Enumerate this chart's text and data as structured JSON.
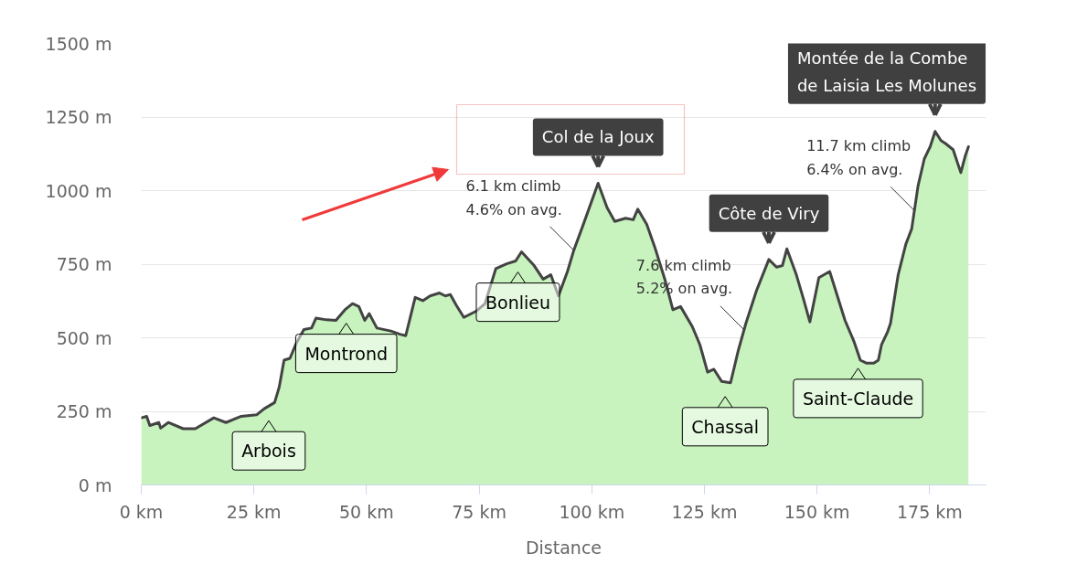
{
  "chart_data": {
    "type": "area",
    "xlabel": "Distance",
    "x": [
      0,
      1.2,
      1.9,
      3.9,
      4.3,
      6.0,
      9.3,
      12.0,
      16.1,
      18.8,
      22.2,
      25.6,
      27.3,
      29.6,
      30.6,
      31.7,
      33.0,
      34.4,
      36.1,
      37.8,
      38.8,
      41.1,
      43.2,
      45.2,
      46.9,
      48.3,
      49.6,
      50.6,
      52.3,
      55.4,
      57.4,
      58.7,
      59.7,
      60.8,
      62.5,
      64.1,
      66.2,
      67.5,
      68.6,
      69.9,
      71.6,
      74.3,
      76.3,
      78.7,
      81.1,
      83.1,
      84.4,
      87.2,
      89.2,
      90.9,
      92.6,
      94.6,
      96.0,
      98.0,
      101.4,
      103.4,
      105.1,
      107.5,
      109.2,
      110.2,
      112.2,
      114.0,
      116.3,
      118.0,
      119.7,
      122.3,
      124.0,
      125.7,
      127.1,
      128.8,
      130.8,
      132.5,
      134.2,
      136.6,
      139.3,
      141.0,
      142.3,
      143.3,
      145.4,
      147.0,
      148.4,
      150.4,
      152.8,
      154.5,
      156.2,
      158.2,
      159.6,
      160.9,
      162.6,
      163.6,
      164.3,
      165.6,
      166.3,
      168.0,
      169.7,
      171.0,
      172.4,
      173.8,
      175.1,
      176.2,
      177.5,
      178.5,
      180.2,
      181.9,
      182.9,
      183.6
    ],
    "series": [
      {
        "color": "#c8f3be",
        "values": [
          228,
          233,
          202,
          212,
          193,
          212,
          191,
          191,
          228,
          212,
          233,
          238,
          259,
          280,
          331,
          424,
          430,
          481,
          528,
          533,
          567,
          561,
          559,
          595,
          616,
          606,
          559,
          582,
          533,
          523,
          512,
          507,
          569,
          637,
          626,
          642,
          652,
          642,
          647,
          611,
          569,
          590,
          616,
          735,
          751,
          761,
          792,
          745,
          699,
          714,
          642,
          725,
          797,
          880,
          1025,
          942,
          895,
          906,
          901,
          937,
          885,
          807,
          694,
          595,
          606,
          538,
          476,
          383,
          393,
          352,
          347,
          456,
          549,
          662,
          766,
          740,
          745,
          802,
          714,
          631,
          554,
          704,
          725,
          642,
          559,
          487,
          424,
          414,
          414,
          424,
          476,
          518,
          549,
          714,
          818,
          870,
          1015,
          1108,
          1149,
          1201,
          1170,
          1160,
          1139,
          1061,
          1118,
          1149
        ]
      }
    ],
    "xlim": [
      0,
      187.5
    ],
    "xticks": [
      {
        "value": 0,
        "label": "0 km"
      },
      {
        "value": 25,
        "label": "25 km"
      },
      {
        "value": 50,
        "label": "50 km"
      },
      {
        "value": 75,
        "label": "75 km"
      },
      {
        "value": 100,
        "label": "100 km"
      },
      {
        "value": 125,
        "label": "125 km"
      },
      {
        "value": 150,
        "label": "150 km"
      },
      {
        "value": 175,
        "label": "175 km"
      }
    ],
    "ylim": [
      0,
      1500
    ],
    "yticks": [
      {
        "value": 0,
        "label": "0 m"
      },
      {
        "value": 250,
        "label": "250 m"
      },
      {
        "value": 500,
        "label": "500 m"
      },
      {
        "value": 750,
        "label": "750 m"
      },
      {
        "value": 1000,
        "label": "1000 m"
      },
      {
        "value": 1250,
        "label": "1250 m"
      },
      {
        "value": 1500,
        "label": "1500 m"
      }
    ],
    "grid": "y",
    "line_style": "solid",
    "annotations": [
      {
        "text": "Arbois",
        "x": 28.3,
        "y": 268
      },
      {
        "text": "Montrond",
        "x": 45.5,
        "y": 599
      },
      {
        "text": "Bonlieu",
        "x": 83.6,
        "y": 773
      },
      {
        "text": "6.1 km climb\n4.6% on avg.",
        "x": 96.0,
        "y": 797
      },
      {
        "text": "Col de la Joux",
        "x": 101.4,
        "y": 1025
      },
      {
        "text": "Chassal",
        "x": 129.6,
        "y": 350
      },
      {
        "text": "7.6 km climb\n5.2% on avg.",
        "x": 133.8,
        "y": 527
      },
      {
        "text": "Côte de Viry",
        "x": 139.3,
        "y": 766
      },
      {
        "text": "Saint-Claude",
        "x": 159.1,
        "y": 446
      },
      {
        "text": "11.7 km climb\n6.4% on avg.",
        "x": 171.6,
        "y": 932
      },
      {
        "text": "Montée de la Combe de Laisia Les Molunes",
        "x": 176.2,
        "y": 1201
      }
    ]
  }
}
